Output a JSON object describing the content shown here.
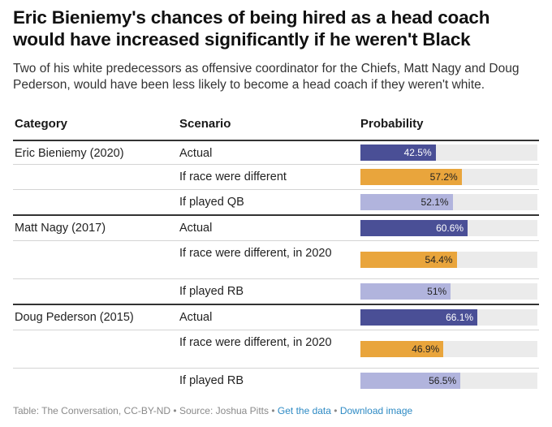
{
  "header": {
    "title": "Eric Bieniemy's chances of being hired as a head coach would have increased significantly if he weren't Black",
    "subtitle": "Two of his white predecessors as offensive coordinator for the Chiefs, Matt Nagy and Doug Pederson, would have been less likely to become a head coach if they weren't white."
  },
  "table": {
    "columns": [
      "Category",
      "Scenario",
      "Probability"
    ]
  },
  "colors": {
    "actual": "#4a4f96",
    "race": "#e9a53c",
    "position": "#b1b4dd",
    "track": "#ebebeb"
  },
  "chart_data": {
    "type": "table",
    "value_range": [
      0,
      100
    ],
    "unit": "%",
    "rows": [
      {
        "category": "Eric Bieniemy (2020)",
        "scenario": "Actual",
        "kind": "actual",
        "value": 42.5,
        "label": "42.5%"
      },
      {
        "category": "",
        "scenario": "If race were different",
        "kind": "race",
        "value": 57.2,
        "label": "57.2%"
      },
      {
        "category": "",
        "scenario": "If played QB",
        "kind": "position",
        "value": 52.1,
        "label": "52.1%"
      },
      {
        "category": "Matt Nagy (2017)",
        "scenario": "Actual",
        "kind": "actual",
        "value": 60.6,
        "label": "60.6%"
      },
      {
        "category": "",
        "scenario": "If race were different, in 2020",
        "kind": "race",
        "value": 54.4,
        "label": "54.4%"
      },
      {
        "category": "",
        "scenario": "If played RB",
        "kind": "position",
        "value": 51,
        "label": "51%"
      },
      {
        "category": "Doug Pederson (2015)",
        "scenario": "Actual",
        "kind": "actual",
        "value": 66.1,
        "label": "66.1%"
      },
      {
        "category": "",
        "scenario": "If race were different, in 2020",
        "kind": "race",
        "value": 46.9,
        "label": "46.9%"
      },
      {
        "category": "",
        "scenario": "If played RB",
        "kind": "position",
        "value": 56.5,
        "label": "56.5%"
      }
    ]
  },
  "footer": {
    "source": "Table: The Conversation, CC-BY-ND • Source: Joshua Pitts • ",
    "get_data": "Get the data",
    "separator": " • ",
    "download": "Download image"
  }
}
